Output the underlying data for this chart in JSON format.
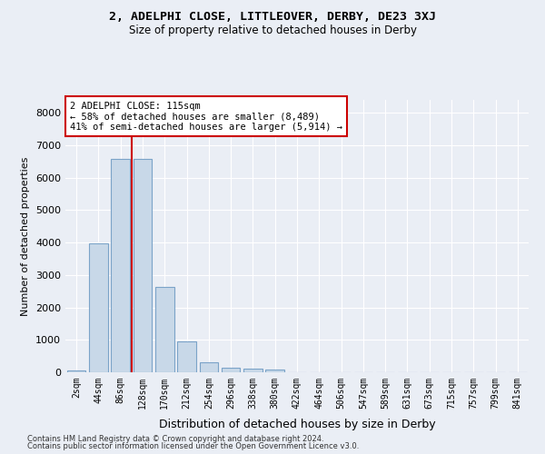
{
  "title": "2, ADELPHI CLOSE, LITTLEOVER, DERBY, DE23 3XJ",
  "subtitle": "Size of property relative to detached houses in Derby",
  "xlabel": "Distribution of detached houses by size in Derby",
  "ylabel": "Number of detached properties",
  "footer_line1": "Contains HM Land Registry data © Crown copyright and database right 2024.",
  "footer_line2": "Contains public sector information licensed under the Open Government Licence v3.0.",
  "bar_labels": [
    "2sqm",
    "44sqm",
    "86sqm",
    "128sqm",
    "170sqm",
    "212sqm",
    "254sqm",
    "296sqm",
    "338sqm",
    "380sqm",
    "422sqm",
    "464sqm",
    "506sqm",
    "547sqm",
    "589sqm",
    "631sqm",
    "673sqm",
    "715sqm",
    "757sqm",
    "799sqm",
    "841sqm"
  ],
  "bar_values": [
    70,
    3980,
    6580,
    6580,
    2620,
    960,
    310,
    130,
    110,
    90,
    0,
    0,
    0,
    0,
    0,
    0,
    0,
    0,
    0,
    0,
    0
  ],
  "bar_color": "#c8d8e8",
  "bar_edgecolor": "#7ba3c8",
  "ylim": [
    0,
    8400
  ],
  "yticks": [
    0,
    1000,
    2000,
    3000,
    4000,
    5000,
    6000,
    7000,
    8000
  ],
  "annotation_box_text": "2 ADELPHI CLOSE: 115sqm\n← 58% of detached houses are smaller (8,489)\n41% of semi-detached houses are larger (5,914) →",
  "vline_x_index": 3.0,
  "vline_color": "#cc0000",
  "annotation_box_color": "#ffffff",
  "annotation_box_edgecolor": "#cc0000",
  "bg_color": "#eaeef5",
  "plot_bg_color": "#eaeef5",
  "grid_color": "#ffffff"
}
